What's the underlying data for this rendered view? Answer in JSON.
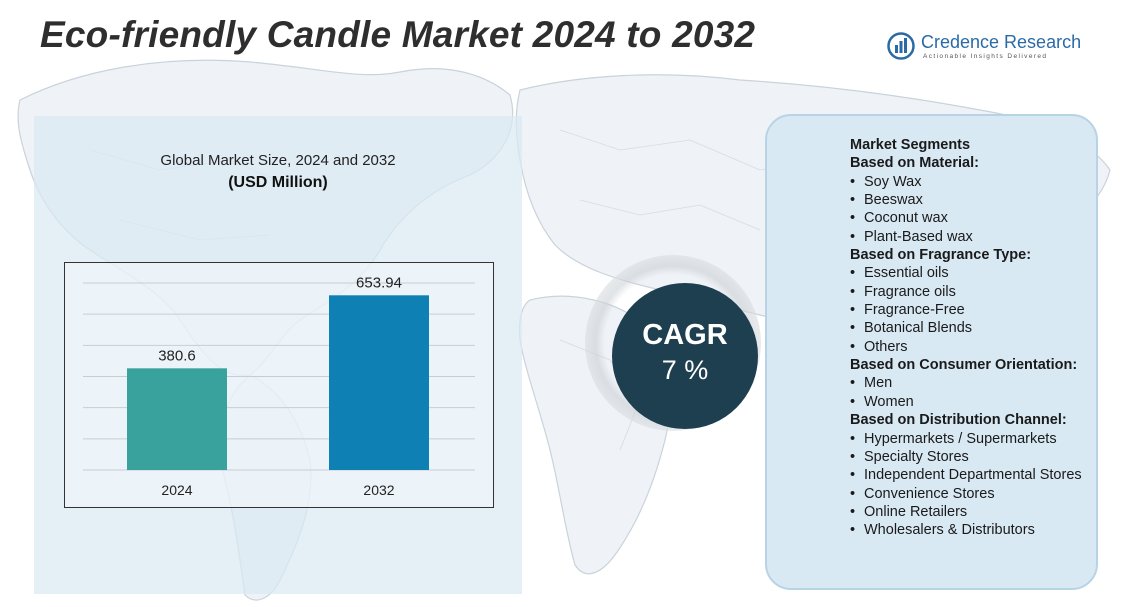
{
  "title": "Eco-friendly Candle Market 2024 to 2032",
  "logo": {
    "name": "Credence Research",
    "tagline": "Actionable Insights Delivered",
    "icon": "bar-chart-logo-icon",
    "color": "#2b6aa6"
  },
  "chart_data": {
    "type": "bar",
    "title": "Global Market Size, 2024 and 2032",
    "subtitle": "(USD Million)",
    "categories": [
      "2024",
      "2032"
    ],
    "values": [
      380.6,
      653.94
    ],
    "value_labels": [
      "380.6",
      "653.94"
    ],
    "colors": [
      "#39a29c",
      "#0f80b3"
    ],
    "grid": true,
    "legend": "none"
  },
  "cagr": {
    "label": "CAGR",
    "value": "7 %",
    "color": "#1e3f4f"
  },
  "segments": {
    "heading": "Market Segments",
    "groups": [
      {
        "title": "Based on Material:",
        "items": [
          "Soy Wax",
          "Beeswax",
          "Coconut wax",
          "Plant-Based wax"
        ]
      },
      {
        "title": "Based on Fragrance Type:",
        "items": [
          "Essential oils",
          "Fragrance oils",
          "Fragrance-Free",
          "Botanical Blends",
          "Others"
        ]
      },
      {
        "title": "Based on Consumer Orientation:",
        "items": [
          "Men",
          "Women"
        ]
      },
      {
        "title": "Based on Distribution Channel:",
        "items": [
          "Hypermarkets / Supermarkets",
          "Specialty Stores",
          "Independent Departmental Stores",
          "Convenience Stores",
          "Online Retailers",
          "Wholesalers & Distributors"
        ]
      }
    ]
  }
}
